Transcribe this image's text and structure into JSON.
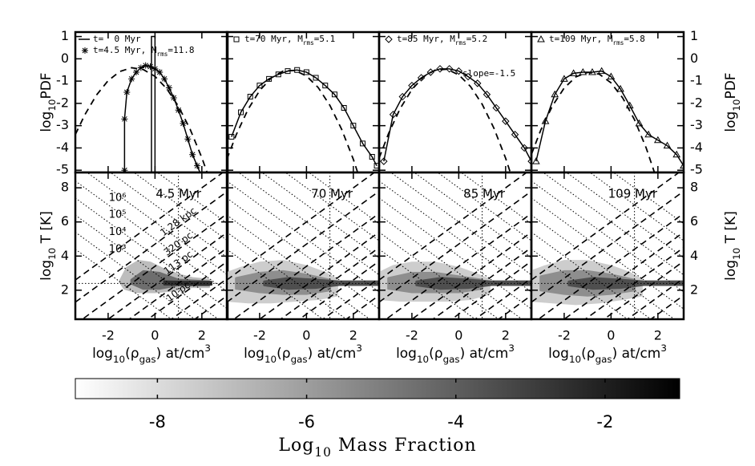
{
  "chart_data": [
    {
      "type": "line",
      "y_label": [
        {
          "text": "log"
        },
        {
          "text": "10",
          "shift": "sub"
        },
        {
          "text": "PDF"
        }
      ],
      "xlim": [
        -3.4,
        3.1
      ],
      "ylim": [
        -5.1,
        1.2
      ],
      "xticks": [
        -2,
        0,
        2
      ],
      "yticks": [
        1,
        0,
        -1,
        -2,
        -3,
        -4,
        -5
      ],
      "panels": [
        {
          "series": [
            {
              "name": [
                {
                  "text": "t=  0 Myr"
                }
              ],
              "style": "solid",
              "color": "#000000",
              "x": [
                -0.15,
                -0.15,
                0,
                0
              ],
              "values": [
                -5.1,
                1,
                1,
                -5.1
              ]
            },
            {
              "name": [
                {
                  "text": "t=4.5 Myr, M"
                },
                {
                  "text": "rms",
                  "shift": "sub"
                },
                {
                  "text": "=11.8"
                }
              ],
              "style": "solid",
              "marker": "asterisk",
              "color": "#000000",
              "x": [
                -1.3,
                -1.3,
                -1.2,
                -1.0,
                -0.8,
                -0.6,
                -0.4,
                -0.2,
                0,
                0.2,
                0.4,
                0.6,
                0.8,
                1.0,
                1.2,
                1.4,
                1.6,
                1.8,
                2.0
              ],
              "values": [
                -5.0,
                -2.7,
                -1.5,
                -0.9,
                -0.6,
                -0.4,
                -0.3,
                -0.35,
                -0.45,
                -0.6,
                -0.9,
                -1.3,
                -1.75,
                -2.3,
                -2.9,
                -3.6,
                -4.3,
                -4.8,
                -5.3
              ]
            },
            {
              "style": "dashed",
              "color": "#000000",
              "x": [
                -3.4,
                -3,
                -2.5,
                -2,
                -1.5,
                -1,
                -0.5,
                0,
                0.5,
                1,
                1.5,
                2,
                2.3
              ],
              "values": [
                -3.4,
                -2.52,
                -1.63,
                -0.98,
                -0.57,
                -0.4,
                -0.48,
                -0.79,
                -1.34,
                -2.13,
                -3.16,
                -4.44,
                -5.32
              ]
            }
          ]
        },
        {
          "series": [
            {
              "name": [
                {
                  "text": "t=70 Myr, M"
                },
                {
                  "text": "rms",
                  "shift": "sub"
                },
                {
                  "text": "=5.1"
                }
              ],
              "style": "solid",
              "marker": "square",
              "color": "#000000",
              "x": [
                -3.2,
                -2.8,
                -2.4,
                -2.0,
                -1.6,
                -1.2,
                -0.8,
                -0.4,
                0,
                0.4,
                0.8,
                1.2,
                1.6,
                2.0,
                2.4,
                2.8,
                3.0
              ],
              "values": [
                -3.5,
                -2.4,
                -1.7,
                -1.2,
                -0.9,
                -0.7,
                -0.55,
                -0.5,
                -0.6,
                -0.85,
                -1.2,
                -1.6,
                -2.2,
                -3.0,
                -3.8,
                -4.4,
                -4.8
              ]
            },
            {
              "style": "dashed",
              "color": "#000000",
              "x": [
                -3.4,
                -3,
                -2.5,
                -2,
                -1.5,
                -1,
                -0.5,
                0,
                0.5,
                1,
                1.5,
                2,
                2.4
              ],
              "values": [
                -4.51,
                -3.41,
                -2.28,
                -1.43,
                -0.85,
                -0.55,
                -0.52,
                -0.77,
                -1.29,
                -2.09,
                -3.16,
                -4.51,
                -5.79
              ]
            }
          ]
        },
        {
          "series": [
            {
              "name": [
                {
                  "text": "t=85 Myr, M"
                },
                {
                  "text": "rms",
                  "shift": "sub"
                },
                {
                  "text": "=5.2"
                }
              ],
              "style": "solid",
              "marker": "diamond",
              "color": "#000000",
              "x": [
                -3.2,
                -2.8,
                -2.4,
                -2.0,
                -1.6,
                -1.2,
                -0.8,
                -0.4,
                0,
                0.4,
                0.8,
                1.2,
                1.6,
                2.0,
                2.4,
                2.8,
                3.1
              ],
              "values": [
                -4.6,
                -2.5,
                -1.7,
                -1.2,
                -0.85,
                -0.6,
                -0.45,
                -0.45,
                -0.55,
                -0.8,
                -1.1,
                -1.6,
                -2.2,
                -2.8,
                -3.4,
                -4.0,
                -4.6
              ]
            },
            {
              "style": "dashed",
              "color": "#000000",
              "x": [
                -3.4,
                -3,
                -2.5,
                -2,
                -1.5,
                -1,
                -0.5,
                0,
                0.5,
                1,
                1.5,
                2,
                2.4
              ],
              "values": [
                -4.46,
                -3.36,
                -2.23,
                -1.38,
                -0.8,
                -0.5,
                -0.47,
                -0.72,
                -1.24,
                -2.04,
                -3.11,
                -4.46,
                -5.74
              ]
            }
          ],
          "annotations": [
            "slope=-1.5"
          ]
        },
        {
          "series": [
            {
              "name": [
                {
                  "text": "t=109 Myr, M"
                },
                {
                  "text": "rms",
                  "shift": "sub"
                },
                {
                  "text": "=5.8"
                }
              ],
              "style": "solid",
              "marker": "triangle",
              "color": "#000000",
              "x": [
                -3.2,
                -2.8,
                -2.4,
                -2.0,
                -1.6,
                -1.2,
                -0.8,
                -0.4,
                0,
                0.4,
                0.8,
                1.2,
                1.6,
                2.0,
                2.4,
                2.8,
                3.1
              ],
              "values": [
                -4.6,
                -2.8,
                -1.6,
                -0.9,
                -0.65,
                -0.6,
                -0.6,
                -0.55,
                -0.8,
                -1.35,
                -2.1,
                -2.9,
                -3.4,
                -3.65,
                -3.9,
                -4.3,
                -4.8
              ]
            },
            {
              "style": "dashed",
              "color": "#000000",
              "x": [
                -3.4,
                -3,
                -2.5,
                -2,
                -1.5,
                -1,
                -0.5,
                0,
                0.5,
                1,
                1.5,
                2
              ],
              "values": [
                -4.29,
                -3.2,
                -2.11,
                -1.31,
                -0.81,
                -0.61,
                -0.69,
                -1.08,
                -1.76,
                -2.73,
                -4.0,
                -5.56
              ]
            }
          ]
        }
      ]
    },
    {
      "type": "contour",
      "y_label": [
        {
          "text": "log"
        },
        {
          "text": "10",
          "shift": "sub"
        },
        {
          "text": " T [K]"
        }
      ],
      "x_label": [
        {
          "text": "log"
        },
        {
          "text": "10",
          "shift": "sub"
        },
        {
          "text": "(ρ"
        },
        {
          "text": "gas",
          "shift": "sub"
        },
        {
          "text": ") at/cm"
        },
        {
          "text": "3",
          "shift": "sup"
        }
      ],
      "xlim": [
        -3.4,
        3.1
      ],
      "ylim": [
        0.3,
        8.9
      ],
      "xticks": [
        -2,
        0,
        2
      ],
      "yticks": [
        2,
        4,
        6,
        8
      ],
      "reference_T": 2.4,
      "reference_density": 1,
      "isobars": [
        10,
        100,
        {
          "value": 1000,
          "label": "10³"
        },
        {
          "value": 10000,
          "label": "10⁴"
        },
        {
          "value": 100000,
          "label": "10⁵"
        },
        {
          "value": 1000000,
          "label": "10⁶"
        },
        10000000,
        100000000,
        1000000000
      ],
      "jeans_lines": [
        6.0,
        {
          "offset": 4.7,
          "label": "1.28 kpc"
        },
        {
          "offset": 3.4,
          "label": "320 pc"
        },
        {
          "offset": 2.3,
          "label": "113 pc"
        },
        1.4,
        {
          "offset": 0.6,
          "label": "10 pc"
        },
        -0.4,
        -1.4
      ],
      "panels": [
        {
          "label": "4.5 Myr",
          "regions": [
            {
              "level": -7,
              "x": [
                -1.5,
                -1.2,
                -0.7,
                -0.2,
                0.4,
                1.0,
                1.6,
                2.3,
                2.3,
                1.6,
                0.8,
                0,
                -0.8,
                -1.3,
                -1.5
              ],
              "values": [
                2.5,
                3.3,
                3.7,
                3.6,
                3.2,
                2.9,
                2.7,
                2.6,
                2.2,
                2.2,
                2.0,
                1.9,
                1.9,
                2.1,
                2.5
              ]
            },
            {
              "level": -4.5,
              "x": [
                -1.0,
                -0.5,
                0.2,
                1.0,
                2.3,
                2.3,
                1.0,
                0.2,
                -0.5,
                -1.0
              ],
              "values": [
                2.6,
                3.1,
                3.0,
                2.6,
                2.5,
                2.3,
                2.3,
                2.1,
                2.1,
                2.4
              ]
            },
            {
              "level": -2.5,
              "x": [
                0.4,
                1.2,
                2.4,
                2.4,
                1.2,
                0.4
              ],
              "values": [
                2.5,
                2.48,
                2.48,
                2.34,
                2.34,
                2.35
              ]
            }
          ]
        },
        {
          "label": "70 Myr",
          "regions": [
            {
              "level": -7.5,
              "x": [
                -3.4,
                -2.8,
                -2,
                -1,
                0,
                0.8,
                1.3,
                1.3,
                0.5,
                -0.5,
                -1.5,
                -2.5,
                -3.4
              ],
              "values": [
                3.0,
                3.3,
                3.6,
                3.7,
                3.4,
                3.0,
                2.6,
                1.7,
                1.5,
                1.4,
                1.3,
                1.3,
                1.4
              ]
            },
            {
              "level": -5.5,
              "x": [
                -3.0,
                -2,
                -1,
                0,
                1,
                1,
                0,
                -1,
                -2,
                -3.0
              ],
              "values": [
                2.7,
                3.0,
                3.1,
                2.9,
                2.6,
                2.0,
                1.8,
                1.8,
                1.9,
                2.1
              ]
            },
            {
              "level": -3.5,
              "x": [
                -1.8,
                -0.8,
                0.4,
                1.4,
                3.1,
                3.1,
                1.4,
                0.4,
                -0.8,
                -1.8
              ],
              "values": [
                2.5,
                2.7,
                2.6,
                2.5,
                2.5,
                2.32,
                2.32,
                2.15,
                2.1,
                2.3
              ]
            }
          ]
        },
        {
          "label": "85 Myr",
          "regions": [
            {
              "level": -7.5,
              "x": [
                -3.4,
                -2.8,
                -2,
                -1,
                0,
                0.8,
                1.3,
                1.3,
                0.5,
                -0.5,
                -1.5,
                -2.5,
                -3.4
              ],
              "values": [
                3.0,
                3.4,
                3.6,
                3.6,
                3.3,
                2.9,
                2.6,
                1.8,
                1.5,
                1.4,
                1.4,
                1.4,
                1.5
              ]
            },
            {
              "level": -5.5,
              "x": [
                -3.0,
                -2,
                -1,
                0,
                1,
                1,
                0,
                -1,
                -2,
                -3.0
              ],
              "values": [
                2.7,
                3.0,
                3.0,
                2.8,
                2.6,
                2.1,
                1.9,
                1.9,
                1.9,
                2.1
              ]
            },
            {
              "level": -3.5,
              "x": [
                -1.8,
                -0.8,
                0.4,
                1.4,
                3.1,
                3.1,
                1.4,
                0.4,
                -0.8,
                -1.8
              ],
              "values": [
                2.5,
                2.7,
                2.6,
                2.5,
                2.5,
                2.32,
                2.32,
                2.15,
                2.1,
                2.3
              ]
            }
          ]
        },
        {
          "label": "109 Myr",
          "regions": [
            {
              "level": -7.5,
              "x": [
                -3.4,
                -2.8,
                -2,
                -1,
                0,
                0.8,
                1.3,
                1.3,
                0.5,
                -0.5,
                -1.5,
                -2.5,
                -3.4
              ],
              "values": [
                3.1,
                3.4,
                3.7,
                3.7,
                3.4,
                3.0,
                2.6,
                1.7,
                1.5,
                1.3,
                1.2,
                1.3,
                1.4
              ]
            },
            {
              "level": -5.5,
              "x": [
                -3.0,
                -2,
                -1,
                0,
                1,
                1,
                0,
                -1,
                -2,
                -3.0
              ],
              "values": [
                2.8,
                3.1,
                3.1,
                2.9,
                2.6,
                2.0,
                1.8,
                1.7,
                1.8,
                2.0
              ]
            },
            {
              "level": -3.5,
              "x": [
                -1.8,
                -0.8,
                0.4,
                1.4,
                3.1,
                3.1,
                1.4,
                0.4,
                -0.8,
                -1.8
              ],
              "values": [
                2.5,
                2.7,
                2.6,
                2.5,
                2.5,
                2.32,
                2.32,
                2.15,
                2.1,
                2.3
              ]
            }
          ]
        }
      ]
    },
    {
      "type": "colorbar",
      "label": [
        {
          "text": "Log"
        },
        {
          "text": "10",
          "shift": "sub"
        },
        {
          "text": " Mass Fraction"
        }
      ],
      "clim": [
        -9.1,
        -1.0
      ],
      "ticks": [
        -8,
        -6,
        -4,
        -2
      ],
      "colors": [
        "#ffffff",
        "#000000"
      ]
    }
  ]
}
